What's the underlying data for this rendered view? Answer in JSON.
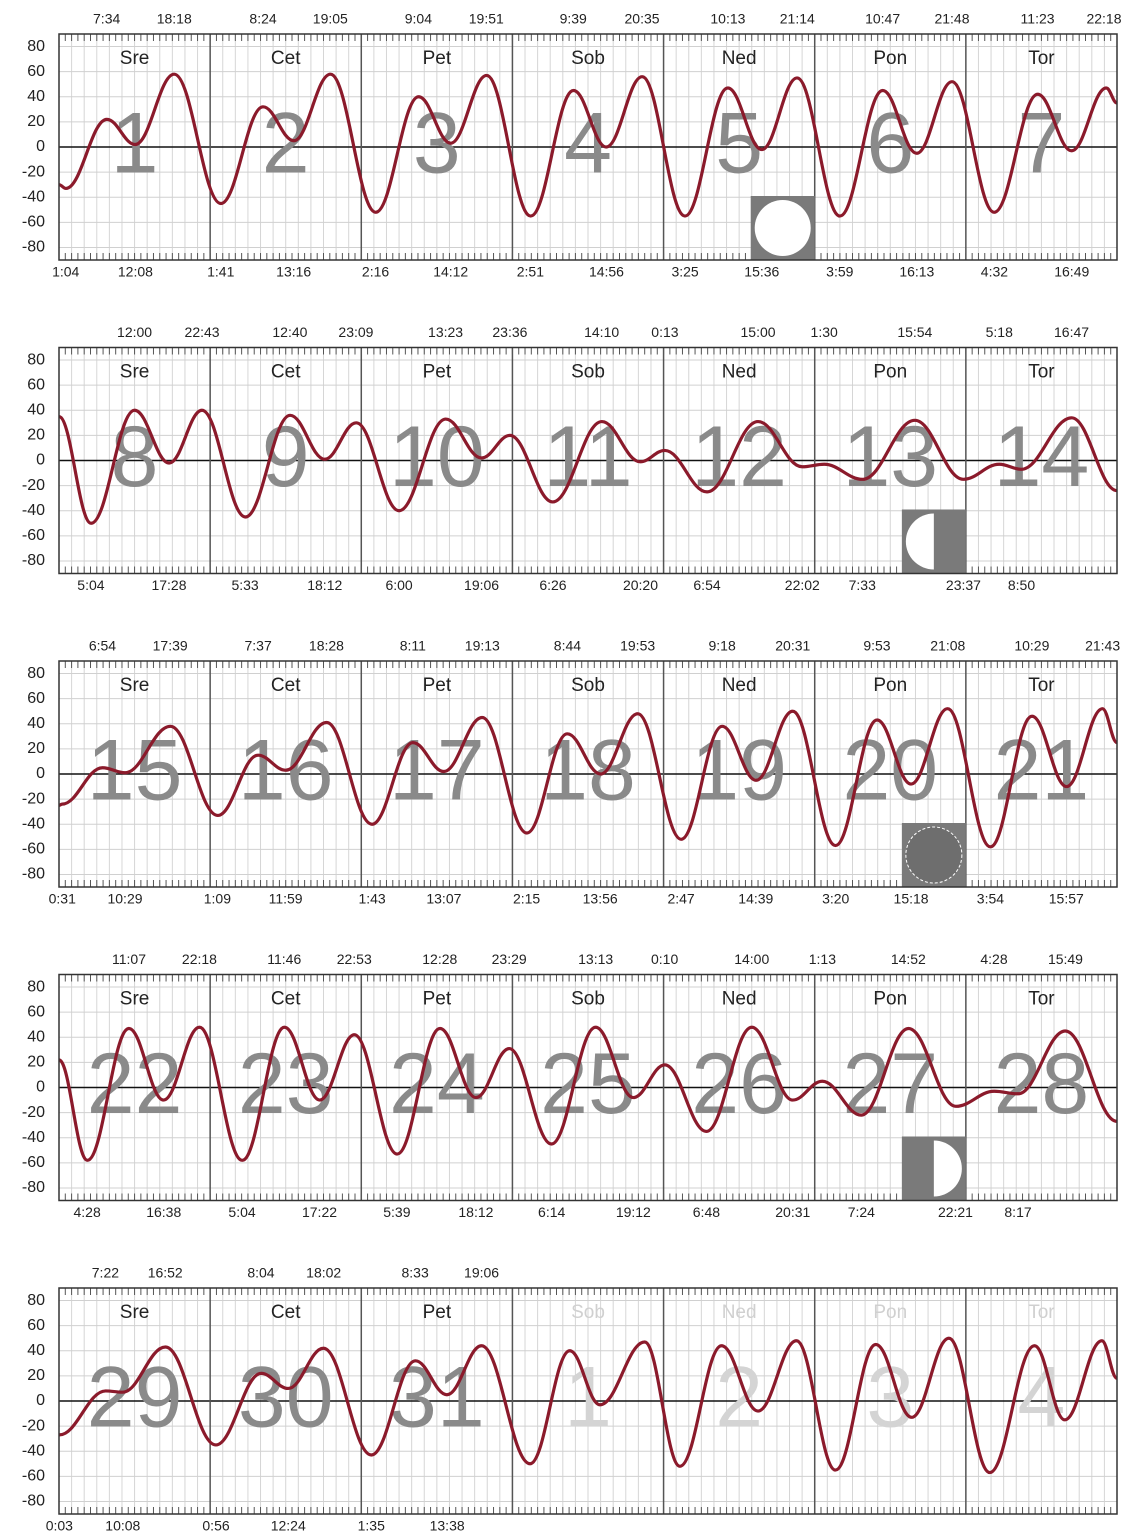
{
  "chart_data": [
    {
      "type": "line",
      "color": "#8b1a2b",
      "xlim": [
        0,
        168
      ],
      "ylim": [
        -90,
        90
      ],
      "yticks": [
        -80,
        -60,
        -40,
        -20,
        0,
        20,
        40,
        60,
        80
      ],
      "grid": true,
      "day_names": [
        "Sre",
        "Cet",
        "Pet",
        "Sob",
        "Ned",
        "Pon",
        "Tor"
      ],
      "day_numbers": [
        "1",
        "2",
        "3",
        "4",
        "5",
        "6",
        "7"
      ],
      "faded_days": [
        false,
        false,
        false,
        false,
        false,
        false,
        false
      ],
      "top_labels": [
        "7:34",
        "18:18",
        "8:24",
        "19:05",
        "9:04",
        "19:51",
        "9:39",
        "20:35",
        "10:13",
        "21:14",
        "10:47",
        "21:48",
        "11:23",
        "22:18"
      ],
      "bottom_labels": [
        "1:04",
        "12:08",
        "1:41",
        "13:16",
        "2:16",
        "14:12",
        "2:51",
        "14:56",
        "3:25",
        "15:36",
        "3:59",
        "16:13",
        "4:32",
        "16:49"
      ],
      "moon": {
        "phase": "full",
        "day": 4
      },
      "x": [
        0,
        1.1,
        7.6,
        12.1,
        18.3,
        25.7,
        32.4,
        37.3,
        43.1,
        50.3,
        57.1,
        62.2,
        67.9,
        74.9,
        81.7,
        86.9,
        92.6,
        99.4,
        106.2,
        111.6,
        117.2,
        124,
        130.8,
        136.2,
        141.8,
        148.5,
        155.4,
        160.8,
        166.3,
        168
      ],
      "values": [
        -30,
        -33,
        22,
        2,
        58,
        -45,
        32,
        5,
        58,
        -52,
        40,
        3,
        57,
        -55,
        45,
        0,
        56,
        -55,
        47,
        -2,
        55,
        -55,
        45,
        -5,
        52,
        -52,
        42,
        -3,
        47,
        35
      ]
    },
    {
      "type": "line",
      "color": "#8b1a2b",
      "xlim": [
        0,
        168
      ],
      "ylim": [
        -90,
        90
      ],
      "yticks": [
        -80,
        -60,
        -40,
        -20,
        0,
        20,
        40,
        60,
        80
      ],
      "grid": true,
      "day_names": [
        "Sre",
        "Cet",
        "Pet",
        "Sob",
        "Ned",
        "Pon",
        "Tor"
      ],
      "day_numbers": [
        "8",
        "9",
        "10",
        "11",
        "12",
        "13",
        "14"
      ],
      "faded_days": [
        false,
        false,
        false,
        false,
        false,
        false,
        false
      ],
      "top_labels": [
        "12:00",
        "22:43",
        "12:40",
        "23:09",
        "13:23",
        "23:36",
        "14:10",
        "0:13",
        "15:00",
        "1:30",
        "15:54",
        "5:18",
        "16:47"
      ],
      "bottom_labels": [
        "5:04",
        "17:28",
        "5:33",
        "18:12",
        "6:00",
        "19:06",
        "6:26",
        "20:20",
        "6:54",
        "22:02",
        "7:33",
        "23:37",
        "8:50"
      ],
      "moon": {
        "phase": "first-quarter",
        "day": 5
      },
      "x": [
        0,
        5.1,
        12,
        17.5,
        22.7,
        29.6,
        36.7,
        42.2,
        47.2,
        54,
        61.4,
        67.1,
        71.6,
        78.4,
        86.2,
        92.3,
        96.2,
        102.9,
        111,
        118,
        121.5,
        127.6,
        135.9,
        143.6,
        149.3,
        152.8,
        160.8,
        168
      ],
      "values": [
        35,
        -50,
        40,
        -2,
        40,
        -45,
        36,
        1,
        30,
        -40,
        33,
        2,
        20,
        -33,
        31,
        -1,
        8,
        -25,
        31,
        -5,
        -3,
        -15,
        32,
        -15,
        -3,
        -7,
        34,
        -24
      ]
    },
    {
      "type": "line",
      "color": "#8b1a2b",
      "xlim": [
        0,
        168
      ],
      "ylim": [
        -90,
        90
      ],
      "yticks": [
        -80,
        -60,
        -40,
        -20,
        0,
        20,
        40,
        60,
        80
      ],
      "grid": true,
      "day_names": [
        "Sre",
        "Cet",
        "Pet",
        "Sob",
        "Ned",
        "Pon",
        "Tor"
      ],
      "day_numbers": [
        "15",
        "16",
        "17",
        "18",
        "19",
        "20",
        "21"
      ],
      "faded_days": [
        false,
        false,
        false,
        false,
        false,
        false,
        false
      ],
      "top_labels": [
        "6:54",
        "17:39",
        "7:37",
        "18:28",
        "8:11",
        "19:13",
        "8:44",
        "19:53",
        "9:18",
        "20:31",
        "9:53",
        "21:08",
        "10:29",
        "21:43"
      ],
      "bottom_labels": [
        "0:31",
        "10:29",
        "1:09",
        "11:59",
        "1:43",
        "13:07",
        "2:15",
        "13:56",
        "2:47",
        "14:39",
        "3:20",
        "15:18",
        "3:54",
        "15:57"
      ],
      "moon": {
        "phase": "new",
        "day": 5
      },
      "x": [
        0,
        0.5,
        6.9,
        10.5,
        17.7,
        25.2,
        31.6,
        36,
        42.5,
        49.7,
        56.2,
        61.1,
        67.2,
        74.3,
        80.7,
        86,
        91.9,
        98.8,
        105.3,
        110.7,
        116.5,
        123.3,
        129.9,
        135.3,
        141.1,
        147.9,
        154.5,
        160,
        165.7,
        168
      ],
      "values": [
        -25,
        -24,
        5,
        1,
        38,
        -33,
        15,
        3,
        41,
        -40,
        25,
        2,
        45,
        -47,
        32,
        0,
        48,
        -52,
        38,
        -5,
        50,
        -57,
        43,
        -8,
        52,
        -58,
        46,
        -10,
        52,
        25
      ]
    },
    {
      "type": "line",
      "color": "#8b1a2b",
      "xlim": [
        0,
        168
      ],
      "ylim": [
        -90,
        90
      ],
      "yticks": [
        -80,
        -60,
        -40,
        -20,
        0,
        20,
        40,
        60,
        80
      ],
      "grid": true,
      "day_names": [
        "Sre",
        "Cet",
        "Pet",
        "Sob",
        "Ned",
        "Pon",
        "Tor"
      ],
      "day_numbers": [
        "22",
        "23",
        "24",
        "25",
        "26",
        "27",
        "28"
      ],
      "faded_days": [
        false,
        false,
        false,
        false,
        false,
        false,
        false
      ],
      "top_labels": [
        "11:07",
        "22:18",
        "11:46",
        "22:53",
        "12:28",
        "23:29",
        "13:13",
        "0:10",
        "14:00",
        "1:13",
        "14:52",
        "4:28",
        "15:49"
      ],
      "bottom_labels": [
        "4:28",
        "16:38",
        "5:04",
        "17:22",
        "5:39",
        "18:12",
        "6:14",
        "19:12",
        "6:48",
        "20:31",
        "7:24",
        "22:21",
        "8:17"
      ],
      "moon": {
        "phase": "last-quarter",
        "day": 5
      },
      "x": [
        0,
        4.5,
        11.1,
        16.6,
        22.3,
        29.1,
        35.8,
        41.4,
        46.9,
        53.7,
        60.5,
        66.2,
        71.5,
        78.2,
        85.2,
        91.2,
        96.2,
        102.8,
        110,
        116.5,
        121.2,
        127.4,
        134.9,
        142.4,
        148.5,
        152.3,
        159.8,
        168
      ],
      "values": [
        22,
        -58,
        47,
        -10,
        48,
        -58,
        48,
        -10,
        42,
        -53,
        47,
        -8,
        31,
        -45,
        48,
        -8,
        18,
        -35,
        48,
        -10,
        5,
        -22,
        47,
        -15,
        -3,
        -5,
        45,
        -27
      ]
    },
    {
      "type": "line",
      "color": "#8b1a2b",
      "xlim": [
        0,
        168
      ],
      "ylim": [
        -90,
        90
      ],
      "yticks": [
        -80,
        -60,
        -40,
        -20,
        0,
        20,
        40,
        60,
        80
      ],
      "grid": true,
      "day_names": [
        "Sre",
        "Cet",
        "Pet",
        "Sob",
        "Ned",
        "Pon",
        "Tor"
      ],
      "day_numbers": [
        "29",
        "30",
        "31",
        "1",
        "2",
        "3",
        "4"
      ],
      "faded_days": [
        false,
        false,
        false,
        true,
        true,
        true,
        true
      ],
      "top_labels": [
        "7:22",
        "16:52",
        "8:04",
        "18:02",
        "8:33",
        "19:06"
      ],
      "bottom_labels": [
        "0:03",
        "10:08",
        "0:56",
        "12:24",
        "1:35",
        "13:38"
      ],
      "x": [
        0.05,
        7.4,
        10.1,
        16.9,
        24.9,
        32.1,
        36.4,
        42,
        49.6,
        56.6,
        61.6,
        67.1,
        74.8,
        81.1,
        85.9,
        93,
        98.6,
        105.2,
        111,
        117.1,
        123.3,
        129.7,
        135.4,
        141.3,
        147.8,
        154.9,
        159.7,
        165.6,
        168
      ],
      "values": [
        -27,
        8,
        7,
        43,
        -35,
        22,
        10,
        42,
        -43,
        32,
        5,
        44,
        -50,
        40,
        -3,
        47,
        -52,
        44,
        -8,
        48,
        -55,
        45,
        -13,
        50,
        -57,
        44,
        -15,
        48,
        18
      ]
    }
  ]
}
